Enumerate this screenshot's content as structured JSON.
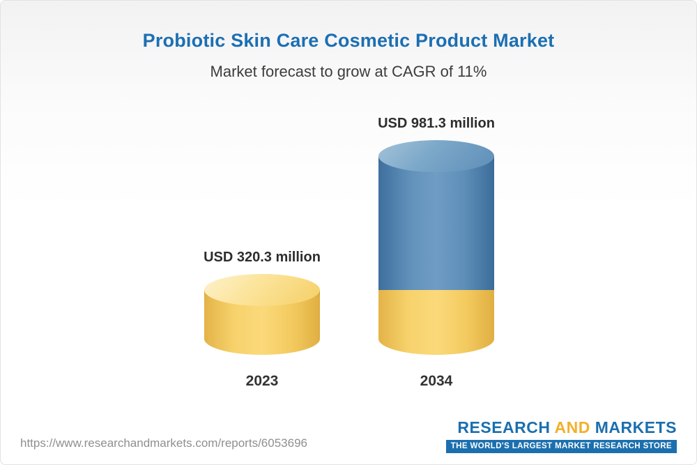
{
  "header": {
    "title": "Probiotic Skin Care Cosmetic Product Market",
    "subtitle": "Market forecast to grow at CAGR of 11%"
  },
  "chart_data": {
    "type": "bar",
    "variant": "3d-cylinder",
    "categories": [
      "2023",
      "2034"
    ],
    "values": [
      320.3,
      981.3
    ],
    "value_labels": [
      "USD 320.3 million",
      "USD 981.3 million"
    ],
    "unit": "USD million",
    "cagr_percent": 11,
    "legend": "off",
    "grid": "off",
    "layout_hint": "2034 cylinder is stacked: yellow base equals 2023 value, blue segment is growth above it",
    "colors": {
      "bar_2023": "#f7d26c",
      "bar_2034_growth": "#6292bb",
      "bar_2034_base": "#f7d26c",
      "title_blue": "#1c6fb2"
    }
  },
  "footer": {
    "url": "https://www.researchandmarkets.com/reports/6053696",
    "logo": {
      "word1": "RESEARCH",
      "word2": "AND",
      "word3": "MARKETS",
      "tagline": "THE WORLD'S LARGEST MARKET RESEARCH STORE",
      "brand_blue": "#1b6fae",
      "brand_gold": "#f2b02c"
    }
  }
}
